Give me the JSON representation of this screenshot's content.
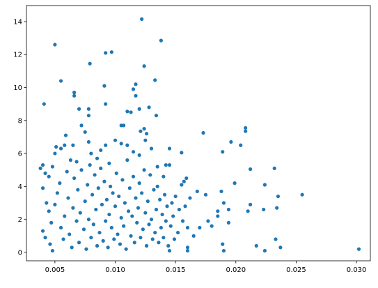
{
  "chart_data": {
    "type": "scatter",
    "color": "#1f77b4",
    "xlim": [
      0.00264,
      0.03115
    ],
    "ylim": [
      -0.51,
      14.97
    ],
    "xticks": [
      0.005,
      {
        "value": 0.01,
        "label": "0.010"
      },
      0.015,
      {
        "value": 0.02,
        "label": "0.020"
      },
      0.025,
      {
        "value": 0.03,
        "label": "0.030"
      }
    ],
    "yticks": [
      0,
      2,
      4,
      6,
      8,
      10,
      12,
      14
    ],
    "x": [
      0.005,
      0.0055,
      0.0041,
      0.0066,
      0.0066,
      0.007,
      0.0079,
      0.0078,
      0.0078,
      0.0092,
      0.0097,
      0.0091,
      0.0092,
      0.0122,
      0.0138,
      0.0124,
      0.0133,
      0.0117,
      0.0115,
      0.0117,
      0.011,
      0.0113,
      0.012,
      0.0128,
      0.0134,
      0.0105,
      0.0107,
      0.0121,
      0.0124,
      0.0126,
      0.0173,
      0.0208,
      0.0208,
      0.0196,
      0.0204,
      0.0189,
      0.0212,
      0.0232,
      0.0199,
      0.0224,
      0.0235,
      0.0255,
      0.0212,
      0.021,
      0.0223,
      0.0234,
      0.0302,
      0.0237,
      0.0233,
      0.0224,
      0.0217,
      0.019,
      0.0189,
      0.0185,
      0.0185,
      0.0188,
      0.019,
      0.0194,
      0.0194,
      0.018,
      0.0177,
      0.0175,
      0.0168,
      0.0165,
      0.017,
      0.0159,
      0.0157,
      0.0155,
      0.0145,
      0.0142,
      0.016,
      0.016,
      0.0145,
      0.0038,
      0.004,
      0.0042,
      0.0045,
      0.0048,
      0.005,
      0.0051,
      0.0055,
      0.0058,
      0.0059,
      0.0063,
      0.0065,
      0.0068,
      0.0072,
      0.0075,
      0.0078,
      0.008,
      0.0085,
      0.0088,
      0.0092,
      0.0095,
      0.01,
      0.0105,
      0.011,
      0.0115,
      0.012,
      0.0125,
      0.013,
      0.0135,
      0.014,
      0.004,
      0.0043,
      0.0045,
      0.0047,
      0.004,
      0.0042,
      0.0046,
      0.0048,
      0.005,
      0.0052,
      0.0054,
      0.0055,
      0.0057,
      0.0058,
      0.006,
      0.0061,
      0.0062,
      0.0064,
      0.0065,
      0.0066,
      0.0068,
      0.0069,
      0.007,
      0.0071,
      0.0072,
      0.0074,
      0.0075,
      0.0076,
      0.0077,
      0.0078,
      0.0079,
      0.008,
      0.0081,
      0.0082,
      0.0083,
      0.0084,
      0.0085,
      0.0086,
      0.0087,
      0.0088,
      0.0089,
      0.009,
      0.0091,
      0.0092,
      0.0093,
      0.0094,
      0.0095,
      0.0096,
      0.0097,
      0.0098,
      0.0099,
      0.01,
      0.0101,
      0.0102,
      0.0103,
      0.0104,
      0.0105,
      0.0106,
      0.0107,
      0.0108,
      0.0109,
      0.011,
      0.0111,
      0.0112,
      0.0113,
      0.0114,
      0.0115,
      0.0116,
      0.0117,
      0.0118,
      0.0119,
      0.012,
      0.0121,
      0.0122,
      0.0123,
      0.0124,
      0.0125,
      0.0126,
      0.0127,
      0.0128,
      0.0129,
      0.013,
      0.0131,
      0.0132,
      0.0133,
      0.0134,
      0.0135,
      0.0136,
      0.0137,
      0.0138,
      0.0139,
      0.014,
      0.0141,
      0.0142,
      0.0143,
      0.0144,
      0.0145,
      0.0146,
      0.0147,
      0.0148,
      0.0149,
      0.015,
      0.0152,
      0.0153,
      0.0155,
      0.0156,
      0.0158,
      0.016,
      0.0162
    ],
    "values": [
      12.6,
      10.4,
      9.0,
      9.7,
      9.5,
      8.7,
      11.45,
      8.7,
      8.3,
      12.1,
      12.15,
      10.1,
      9.0,
      14.15,
      12.85,
      11.3,
      10.45,
      10.2,
      9.9,
      9.5,
      8.55,
      8.5,
      8.7,
      8.8,
      8.3,
      7.7,
      7.7,
      7.35,
      7.5,
      7.2,
      7.25,
      7.55,
      7.35,
      6.7,
      6.5,
      6.1,
      5.05,
      5.1,
      4.2,
      4.1,
      3.4,
      3.5,
      2.9,
      2.5,
      2.6,
      2.7,
      0.2,
      0.3,
      0.8,
      0.1,
      0.4,
      0.1,
      0.5,
      2.2,
      2.5,
      3.7,
      3.0,
      2.6,
      1.8,
      1.6,
      1.9,
      3.5,
      3.7,
      1.0,
      1.5,
      4.5,
      4.3,
      6.05,
      6.3,
      5.3,
      0.1,
      0.3,
      0.1,
      5.1,
      5.3,
      4.8,
      4.6,
      5.2,
      6.0,
      6.4,
      6.3,
      6.5,
      7.1,
      5.6,
      6.5,
      5.5,
      7.7,
      7.3,
      6.7,
      6.0,
      5.7,
      6.2,
      6.5,
      5.4,
      6.8,
      6.6,
      6.5,
      6.1,
      5.9,
      6.8,
      6.3,
      5.2,
      4.6,
      3.9,
      3.0,
      2.5,
      1.8,
      1.3,
      0.9,
      0.5,
      0.1,
      2.9,
      3.6,
      4.2,
      1.5,
      0.8,
      2.2,
      4.9,
      3.3,
      1.1,
      0.3,
      2.7,
      4.5,
      1.9,
      3.8,
      0.6,
      2.4,
      5.0,
      1.4,
      3.1,
      0.2,
      4.1,
      2.0,
      5.3,
      0.9,
      3.5,
      1.7,
      4.7,
      2.6,
      0.4,
      3.9,
      1.2,
      5.1,
      2.9,
      0.7,
      4.3,
      1.9,
      3.2,
      0.3,
      2.3,
      4.0,
      1.5,
      3.6,
      0.8,
      2.8,
      4.8,
      1.1,
      3.4,
      0.5,
      2.1,
      4.4,
      1.6,
      3.0,
      0.2,
      5.6,
      2.5,
      3.9,
      1.0,
      2.2,
      4.6,
      0.6,
      3.3,
      1.8,
      2.7,
      4.2,
      0.9,
      3.6,
      1.4,
      5.0,
      2.4,
      0.4,
      3.1,
      1.7,
      4.7,
      2.0,
      0.8,
      3.8,
      1.2,
      2.6,
      4.0,
      0.6,
      3.2,
      1.5,
      2.3,
      0.9,
      3.5,
      1.9,
      2.8,
      0.4,
      5.3,
      1.6,
      3.0,
      2.2,
      0.8,
      3.4,
      1.2,
      2.6,
      4.1,
      1.9,
      2.8,
      1.5,
      3.3
    ]
  }
}
